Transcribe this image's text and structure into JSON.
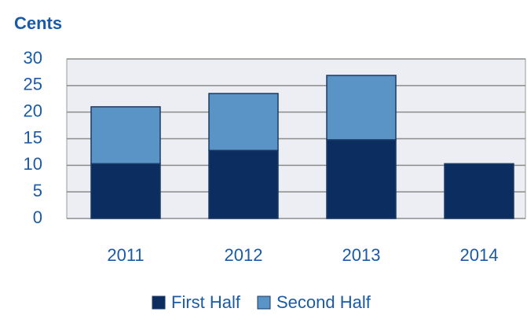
{
  "chart_data": {
    "type": "stacked_bar",
    "title": "Cents",
    "categories": [
      "2011",
      "2012",
      "2013",
      "2014"
    ],
    "series": [
      {
        "name": "First Half",
        "color": "#0b2d5f",
        "values": [
          10.3,
          12.8,
          14.8,
          10.3
        ]
      },
      {
        "name": "Second Half",
        "color": "#5a93c6",
        "values": [
          10.7,
          10.7,
          12.1,
          null
        ]
      }
    ],
    "ylim": [
      0,
      30
    ],
    "yticks": [
      0,
      5,
      10,
      15,
      20,
      25,
      30
    ],
    "grid": true,
    "legend": "bottom"
  }
}
